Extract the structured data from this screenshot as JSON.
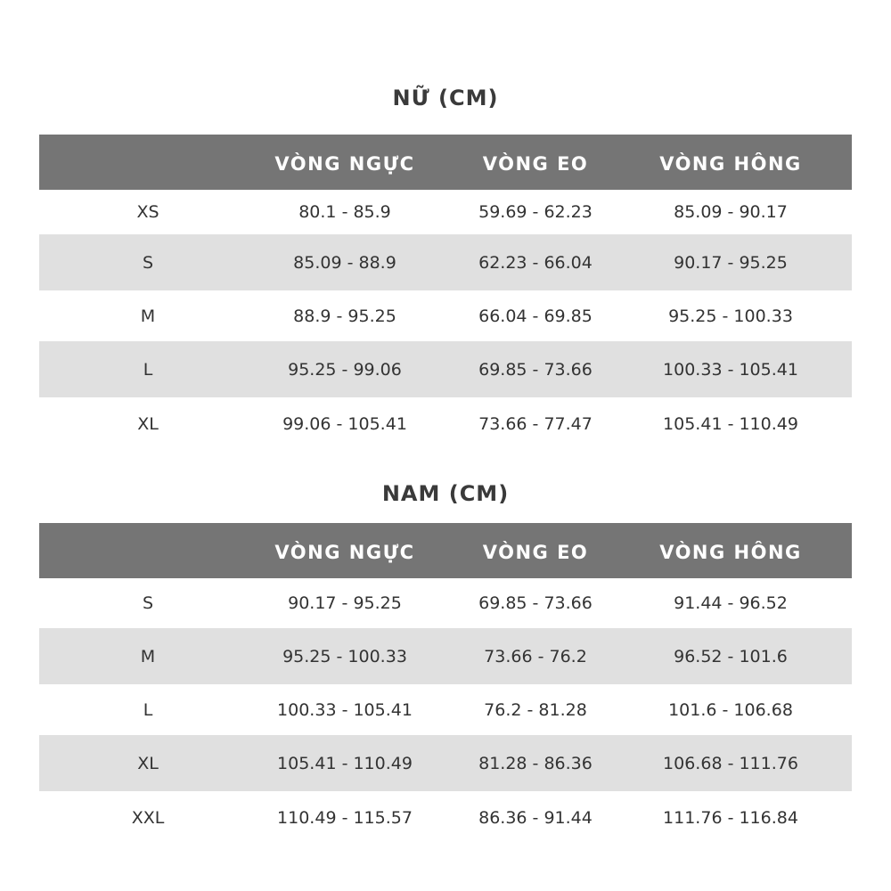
{
  "columns": [
    "",
    "VÒNG NGỰC",
    "VÒNG EO",
    "VÒNG HÔNG"
  ],
  "colors": {
    "header_bg": "#757575",
    "stripe_bg": "#e0e0e0",
    "text": "#333333"
  },
  "women": {
    "title": "NỮ (CM)",
    "rows": [
      [
        "XS",
        "80.1 - 85.9",
        "59.69 - 62.23",
        "85.09 - 90.17"
      ],
      [
        "S",
        "85.09 - 88.9",
        "62.23 - 66.04",
        "90.17 - 95.25"
      ],
      [
        "M",
        "88.9 - 95.25",
        "66.04 - 69.85",
        "95.25 - 100.33"
      ],
      [
        "L",
        "95.25 - 99.06",
        "69.85 - 73.66",
        "100.33 - 105.41"
      ],
      [
        "XL",
        "99.06 - 105.41",
        "73.66 - 77.47",
        "105.41 - 110.49"
      ]
    ]
  },
  "men": {
    "title": "NAM (CM)",
    "rows": [
      [
        "S",
        "90.17 - 95.25",
        "69.85 - 73.66",
        "91.44 - 96.52"
      ],
      [
        "M",
        "95.25 - 100.33",
        "73.66 - 76.2",
        "96.52 - 101.6"
      ],
      [
        "L",
        "100.33 - 105.41",
        "76.2 - 81.28",
        "101.6 - 106.68"
      ],
      [
        "XL",
        "105.41 - 110.49",
        "81.28 - 86.36",
        "106.68 - 111.76"
      ],
      [
        "XXL",
        "110.49 - 115.57",
        "86.36 - 91.44",
        "111.76 - 116.84"
      ]
    ]
  }
}
